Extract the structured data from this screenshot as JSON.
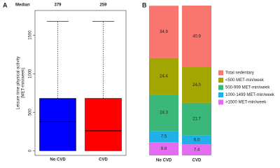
{
  "chart_data": [
    {
      "type": "box",
      "panel_label": "A",
      "median_label": "Median",
      "ylabel": [
        "Leisure time physical activity",
        "(MET-min/week)"
      ],
      "categories": [
        "No CVD",
        "CVD"
      ],
      "boxes": [
        {
          "color": "#0000ff",
          "q1": 0,
          "median": 379,
          "q3": 680,
          "max": 1680
        },
        {
          "color": "#ff0000",
          "q1": 0,
          "median": 259,
          "q3": 680,
          "max": 1680
        }
      ],
      "ylim": [
        -60,
        1820
      ],
      "yticks": [
        0,
        500,
        1000,
        1500
      ]
    },
    {
      "type": "stacked_bar",
      "panel_label": "B",
      "categories": [
        "No CVD",
        "CVD"
      ],
      "series": [
        {
          "name": "Total sedentary",
          "color": "#f8766d",
          "values": [
            34.9,
            40.9
          ],
          "value_labels": [
            "34.9",
            "40.9"
          ]
        },
        {
          "name": "<500 MET-min/week",
          "color": "#a3a500",
          "values": [
            24.4,
            24
          ],
          "value_labels": [
            "24.4",
            "24.0"
          ]
        },
        {
          "name": "500-999 MET-min/week",
          "color": "#39b87a",
          "values": [
            24.3,
            21.7
          ],
          "value_labels": [
            "24.3",
            "21.7"
          ]
        },
        {
          "name": "1000-1499 MET-min/week",
          "color": "#1fb0e8",
          "values": [
            7.5,
            6
          ],
          "value_labels": [
            "7.5",
            "6.0"
          ]
        },
        {
          "name": ">1500 MET-min/week",
          "color": "#e46cf0",
          "values": [
            8.8,
            7.4
          ],
          "value_labels": [
            "8.8",
            "7.4"
          ]
        }
      ],
      "ylim": [
        0,
        100
      ]
    }
  ]
}
